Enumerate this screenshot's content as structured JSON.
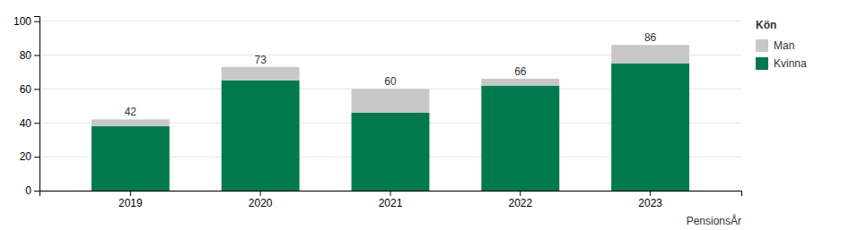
{
  "chart_data": {
    "type": "bar",
    "stacked": true,
    "categories": [
      "2019",
      "2020",
      "2021",
      "2022",
      "2023"
    ],
    "series": [
      {
        "name": "Kvinna",
        "color": "#007A4D",
        "values": [
          38,
          65,
          46,
          62,
          75
        ]
      },
      {
        "name": "Man",
        "color": "#C8C8C8",
        "values": [
          4,
          8,
          14,
          4,
          11
        ]
      }
    ],
    "totals": [
      42,
      73,
      60,
      66,
      86
    ],
    "x_label": "PensionsÅr",
    "legend_title": "Kön",
    "legend": "right",
    "ylim": [
      0,
      103
    ],
    "yticks": [
      0,
      20,
      40,
      60,
      80,
      100
    ],
    "grid": true
  }
}
